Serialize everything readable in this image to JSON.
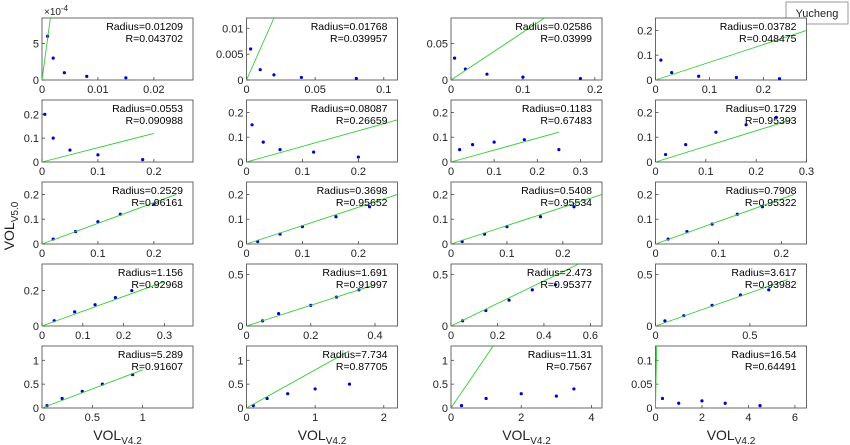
{
  "legend": "Yucheng",
  "xlabel": {
    "text": "VOL",
    "sub": "V4.2"
  },
  "ylabel": {
    "text": "VOL",
    "sub": "V5.0"
  },
  "exponent": {
    "base": "×10",
    "power": "-4"
  },
  "chart_data": [
    {
      "type": "scatter",
      "color": "#0000cc",
      "fit_color": "#33cc33",
      "xlim": [
        0,
        0.027
      ],
      "xticks": [
        0,
        0.01,
        0.02
      ],
      "ylim": [
        0,
        8.5
      ],
      "yticks": [
        0,
        5
      ],
      "annotations": [
        "Radius=0.01209",
        "R=0.043702"
      ],
      "x": [
        0.001,
        0.002,
        0.004,
        0.008,
        0.015
      ],
      "y": [
        6,
        3,
        1,
        0.5,
        0.3
      ],
      "fit": {
        "x": [
          0,
          0.0015
        ],
        "y": [
          0,
          8.5
        ]
      }
    },
    {
      "type": "scatter",
      "color": "#0000cc",
      "fit_color": "#33cc33",
      "xlim": [
        0,
        0.11
      ],
      "xticks": [
        0,
        0.05,
        0.1
      ],
      "ylim": [
        0,
        0.012
      ],
      "yticks": [
        0,
        0.005,
        0.01
      ],
      "annotations": [
        "Radius=0.01768",
        "R=0.039957"
      ],
      "x": [
        0.003,
        0.01,
        0.02,
        0.04,
        0.08
      ],
      "y": [
        0.006,
        0.002,
        0.001,
        0.0005,
        0.0003
      ],
      "fit": {
        "x": [
          0,
          0.02
        ],
        "y": [
          0,
          0.012
        ]
      }
    },
    {
      "type": "scatter",
      "color": "#0000cc",
      "fit_color": "#33cc33",
      "xlim": [
        0,
        0.21
      ],
      "xticks": [
        0,
        0.1,
        0.2
      ],
      "ylim": [
        0,
        0.085
      ],
      "yticks": [
        0,
        0.05
      ],
      "annotations": [
        "Radius=0.02586",
        "R=0.03999"
      ],
      "x": [
        0.005,
        0.02,
        0.05,
        0.1,
        0.18
      ],
      "y": [
        0.03,
        0.015,
        0.008,
        0.004,
        0.002
      ],
      "fit": {
        "x": [
          0,
          0.13
        ],
        "y": [
          0,
          0.085
        ]
      }
    },
    {
      "type": "scatter",
      "color": "#0000cc",
      "fit_color": "#33cc33",
      "xlim": [
        0,
        0.28
      ],
      "xticks": [
        0,
        0.1,
        0.2
      ],
      "ylim": [
        0,
        0.25
      ],
      "yticks": [
        0,
        0.1,
        0.2
      ],
      "annotations": [
        "Radius=0.03782",
        "R=0.048475"
      ],
      "x": [
        0.01,
        0.03,
        0.08,
        0.15,
        0.23
      ],
      "y": [
        0.08,
        0.03,
        0.015,
        0.01,
        0.005
      ],
      "fit": {
        "x": [
          0,
          0.28
        ],
        "y": [
          0,
          0.2
        ]
      }
    },
    {
      "type": "scatter",
      "color": "#0000cc",
      "fit_color": "#33cc33",
      "xlim": [
        0,
        0.27
      ],
      "xticks": [
        0,
        0.1,
        0.2
      ],
      "ylim": [
        0,
        0.26
      ],
      "yticks": [
        0,
        0.1,
        0.2
      ],
      "annotations": [
        "Radius=0.0553",
        "R=0.090988"
      ],
      "x": [
        0.005,
        0.02,
        0.05,
        0.1,
        0.18
      ],
      "y": [
        0.2,
        0.1,
        0.05,
        0.03,
        0.01
      ],
      "fit": {
        "x": [
          0,
          0.2
        ],
        "y": [
          0,
          0.12
        ]
      }
    },
    {
      "type": "scatter",
      "color": "#0000cc",
      "fit_color": "#33cc33",
      "xlim": [
        0,
        0.27
      ],
      "xticks": [
        0,
        0.1,
        0.2
      ],
      "ylim": [
        0,
        0.25
      ],
      "yticks": [
        0,
        0.1,
        0.2
      ],
      "annotations": [
        "Radius=0.08087",
        "R=0.26659"
      ],
      "x": [
        0.01,
        0.03,
        0.06,
        0.12,
        0.2
      ],
      "y": [
        0.15,
        0.08,
        0.05,
        0.04,
        0.02
      ],
      "fit": {
        "x": [
          0,
          0.27
        ],
        "y": [
          0,
          0.17
        ]
      }
    },
    {
      "type": "scatter",
      "color": "#0000cc",
      "fit_color": "#33cc33",
      "xlim": [
        0,
        0.35
      ],
      "xticks": [
        0,
        0.1,
        0.2,
        0.3
      ],
      "ylim": [
        0,
        0.25
      ],
      "yticks": [
        0,
        0.1,
        0.2
      ],
      "annotations": [
        "Radius=0.1183",
        "R=0.67483"
      ],
      "x": [
        0.02,
        0.05,
        0.1,
        0.17,
        0.25
      ],
      "y": [
        0.05,
        0.07,
        0.08,
        0.09,
        0.05
      ],
      "fit": {
        "x": [
          0,
          0.25
        ],
        "y": [
          0,
          0.12
        ]
      }
    },
    {
      "type": "scatter",
      "color": "#0000cc",
      "fit_color": "#33cc33",
      "xlim": [
        0,
        0.3
      ],
      "xticks": [
        0,
        0.1,
        0.2,
        0.3
      ],
      "ylim": [
        0,
        0.25
      ],
      "yticks": [
        0,
        0.1,
        0.2
      ],
      "annotations": [
        "Radius=0.1729",
        "R=0.95393"
      ],
      "x": [
        0.02,
        0.06,
        0.12,
        0.18,
        0.24
      ],
      "y": [
        0.03,
        0.07,
        0.12,
        0.15,
        0.18
      ],
      "fit": {
        "x": [
          0,
          0.27
        ],
        "y": [
          0,
          0.17
        ]
      }
    },
    {
      "type": "scatter",
      "color": "#0000cc",
      "fit_color": "#33cc33",
      "xlim": [
        0,
        0.27
      ],
      "xticks": [
        0,
        0.1,
        0.2
      ],
      "ylim": [
        0,
        0.25
      ],
      "yticks": [
        0,
        0.1,
        0.2
      ],
      "annotations": [
        "Radius=0.2529",
        "R=0.96161"
      ],
      "x": [
        0.02,
        0.06,
        0.1,
        0.14,
        0.2
      ],
      "y": [
        0.02,
        0.05,
        0.09,
        0.12,
        0.16
      ],
      "fit": {
        "x": [
          0,
          0.24
        ],
        "y": [
          0,
          0.2
        ]
      }
    },
    {
      "type": "scatter",
      "color": "#0000cc",
      "fit_color": "#33cc33",
      "xlim": [
        0,
        0.27
      ],
      "xticks": [
        0,
        0.1,
        0.2
      ],
      "ylim": [
        0,
        0.25
      ],
      "yticks": [
        0,
        0.1,
        0.2
      ],
      "annotations": [
        "Radius=0.3698",
        "R=0.95652"
      ],
      "x": [
        0.02,
        0.06,
        0.1,
        0.16,
        0.22
      ],
      "y": [
        0.01,
        0.04,
        0.07,
        0.11,
        0.15
      ],
      "fit": {
        "x": [
          0,
          0.27
        ],
        "y": [
          0,
          0.2
        ]
      }
    },
    {
      "type": "scatter",
      "color": "#0000cc",
      "fit_color": "#33cc33",
      "xlim": [
        0,
        0.27
      ],
      "xticks": [
        0,
        0.1,
        0.2
      ],
      "ylim": [
        0,
        0.25
      ],
      "yticks": [
        0,
        0.1,
        0.2
      ],
      "annotations": [
        "Radius=0.5408",
        "R=0.95534"
      ],
      "x": [
        0.02,
        0.06,
        0.1,
        0.16,
        0.22
      ],
      "y": [
        0.01,
        0.04,
        0.07,
        0.11,
        0.15
      ],
      "fit": {
        "x": [
          0,
          0.27
        ],
        "y": [
          0,
          0.2
        ]
      }
    },
    {
      "type": "scatter",
      "color": "#0000cc",
      "fit_color": "#33cc33",
      "xlim": [
        0,
        0.24
      ],
      "xticks": [
        0,
        0.1,
        0.2
      ],
      "ylim": [
        0,
        0.25
      ],
      "yticks": [
        0,
        0.1,
        0.2
      ],
      "annotations": [
        "Radius=0.7908",
        "R=0.95322"
      ],
      "x": [
        0.02,
        0.05,
        0.09,
        0.13,
        0.17
      ],
      "y": [
        0.02,
        0.05,
        0.08,
        0.12,
        0.15
      ],
      "fit": {
        "x": [
          0,
          0.22
        ],
        "y": [
          0,
          0.2
        ]
      }
    },
    {
      "type": "scatter",
      "color": "#0000cc",
      "fit_color": "#33cc33",
      "xlim": [
        0,
        0.37
      ],
      "xticks": [
        0,
        0.1,
        0.2,
        0.3
      ],
      "ylim": [
        0,
        0.35
      ],
      "yticks": [
        0,
        0.2
      ],
      "annotations": [
        "Radius=1.156",
        "R=0.92968"
      ],
      "x": [
        0.03,
        0.08,
        0.13,
        0.18,
        0.22
      ],
      "y": [
        0.03,
        0.08,
        0.12,
        0.16,
        0.2
      ],
      "fit": {
        "x": [
          0,
          0.3
        ],
        "y": [
          0,
          0.25
        ]
      }
    },
    {
      "type": "scatter",
      "color": "#0000cc",
      "fit_color": "#33cc33",
      "xlim": [
        0,
        0.47
      ],
      "xticks": [
        0,
        0.2,
        0.4
      ],
      "ylim": [
        0,
        0.6
      ],
      "yticks": [
        0,
        0.5
      ],
      "annotations": [
        "Radius=1.691",
        "R=0.91997"
      ],
      "x": [
        0.05,
        0.1,
        0.2,
        0.28,
        0.35
      ],
      "y": [
        0.05,
        0.12,
        0.2,
        0.28,
        0.35
      ],
      "fit": {
        "x": [
          0,
          0.4
        ],
        "y": [
          0,
          0.4
        ]
      }
    },
    {
      "type": "scatter",
      "color": "#0000cc",
      "fit_color": "#33cc33",
      "xlim": [
        0,
        0.65
      ],
      "xticks": [
        0,
        0.2,
        0.4,
        0.6
      ],
      "ylim": [
        0,
        0.6
      ],
      "yticks": [
        0,
        0.5
      ],
      "annotations": [
        "Radius=2.473",
        "R=0.95377"
      ],
      "x": [
        0.05,
        0.15,
        0.25,
        0.35,
        0.45
      ],
      "y": [
        0.05,
        0.15,
        0.25,
        0.35,
        0.4
      ],
      "fit": {
        "x": [
          0,
          0.55
        ],
        "y": [
          0,
          0.6
        ]
      }
    },
    {
      "type": "scatter",
      "color": "#0000cc",
      "fit_color": "#33cc33",
      "xlim": [
        0,
        0.8
      ],
      "xticks": [
        0,
        0.5
      ],
      "ylim": [
        0,
        0.6
      ],
      "yticks": [
        0,
        0.5
      ],
      "annotations": [
        "Radius=3.617",
        "R=0.93982"
      ],
      "x": [
        0.05,
        0.15,
        0.3,
        0.45,
        0.6
      ],
      "y": [
        0.05,
        0.1,
        0.2,
        0.3,
        0.35
      ],
      "fit": {
        "x": [
          0,
          0.7
        ],
        "y": [
          0,
          0.45
        ]
      }
    },
    {
      "type": "scatter",
      "color": "#0000cc",
      "fit_color": "#33cc33",
      "xlim": [
        0,
        1.5
      ],
      "xticks": [
        0,
        0.5,
        1
      ],
      "ylim": [
        0,
        1.3
      ],
      "yticks": [
        0,
        0.5,
        1
      ],
      "annotations": [
        "Radius=5.289",
        "R=0.91607"
      ],
      "x": [
        0.05,
        0.2,
        0.4,
        0.6,
        0.9
      ],
      "y": [
        0.05,
        0.2,
        0.35,
        0.5,
        0.7
      ],
      "fit": {
        "x": [
          0,
          1
        ],
        "y": [
          0,
          0.8
        ]
      }
    },
    {
      "type": "scatter",
      "color": "#0000cc",
      "fit_color": "#33cc33",
      "xlim": [
        0,
        2.2
      ],
      "xticks": [
        0,
        1,
        2
      ],
      "ylim": [
        0,
        1.3
      ],
      "yticks": [
        0,
        0.5,
        1
      ],
      "annotations": [
        "Radius=7.734",
        "R=0.87705"
      ],
      "x": [
        0.1,
        0.3,
        0.6,
        1,
        1.5
      ],
      "y": [
        0.05,
        0.2,
        0.3,
        0.4,
        0.5
      ],
      "fit": {
        "x": [
          0,
          1.5
        ],
        "y": [
          0,
          1.2
        ]
      }
    },
    {
      "type": "scatter",
      "color": "#0000cc",
      "fit_color": "#33cc33",
      "xlim": [
        0,
        4.3
      ],
      "xticks": [
        0,
        2,
        4
      ],
      "ylim": [
        0,
        1.3
      ],
      "yticks": [
        0,
        0.5,
        1
      ],
      "annotations": [
        "Radius=11.31",
        "R=0.7567"
      ],
      "x": [
        0.3,
        1,
        2,
        3,
        3.5
      ],
      "y": [
        0.05,
        0.2,
        0.3,
        0.25,
        0.4
      ],
      "fit": {
        "x": [
          0,
          1.2
        ],
        "y": [
          0,
          1.3
        ]
      }
    },
    {
      "type": "scatter",
      "color": "#0000cc",
      "fit_color": "#33cc33",
      "xlim": [
        0,
        6.5
      ],
      "xticks": [
        0,
        2,
        4,
        6
      ],
      "ylim": [
        0,
        0.13
      ],
      "yticks": [
        0,
        0.05,
        0.1
      ],
      "annotations": [
        "Radius=16.54",
        "R=0.64491"
      ],
      "x": [
        0.3,
        1,
        2,
        3,
        4.5
      ],
      "y": [
        0.02,
        0.01,
        0.015,
        0.01,
        0.005
      ],
      "fit": {
        "x": [
          0,
          0.05
        ],
        "y": [
          0,
          0.13
        ]
      }
    }
  ]
}
